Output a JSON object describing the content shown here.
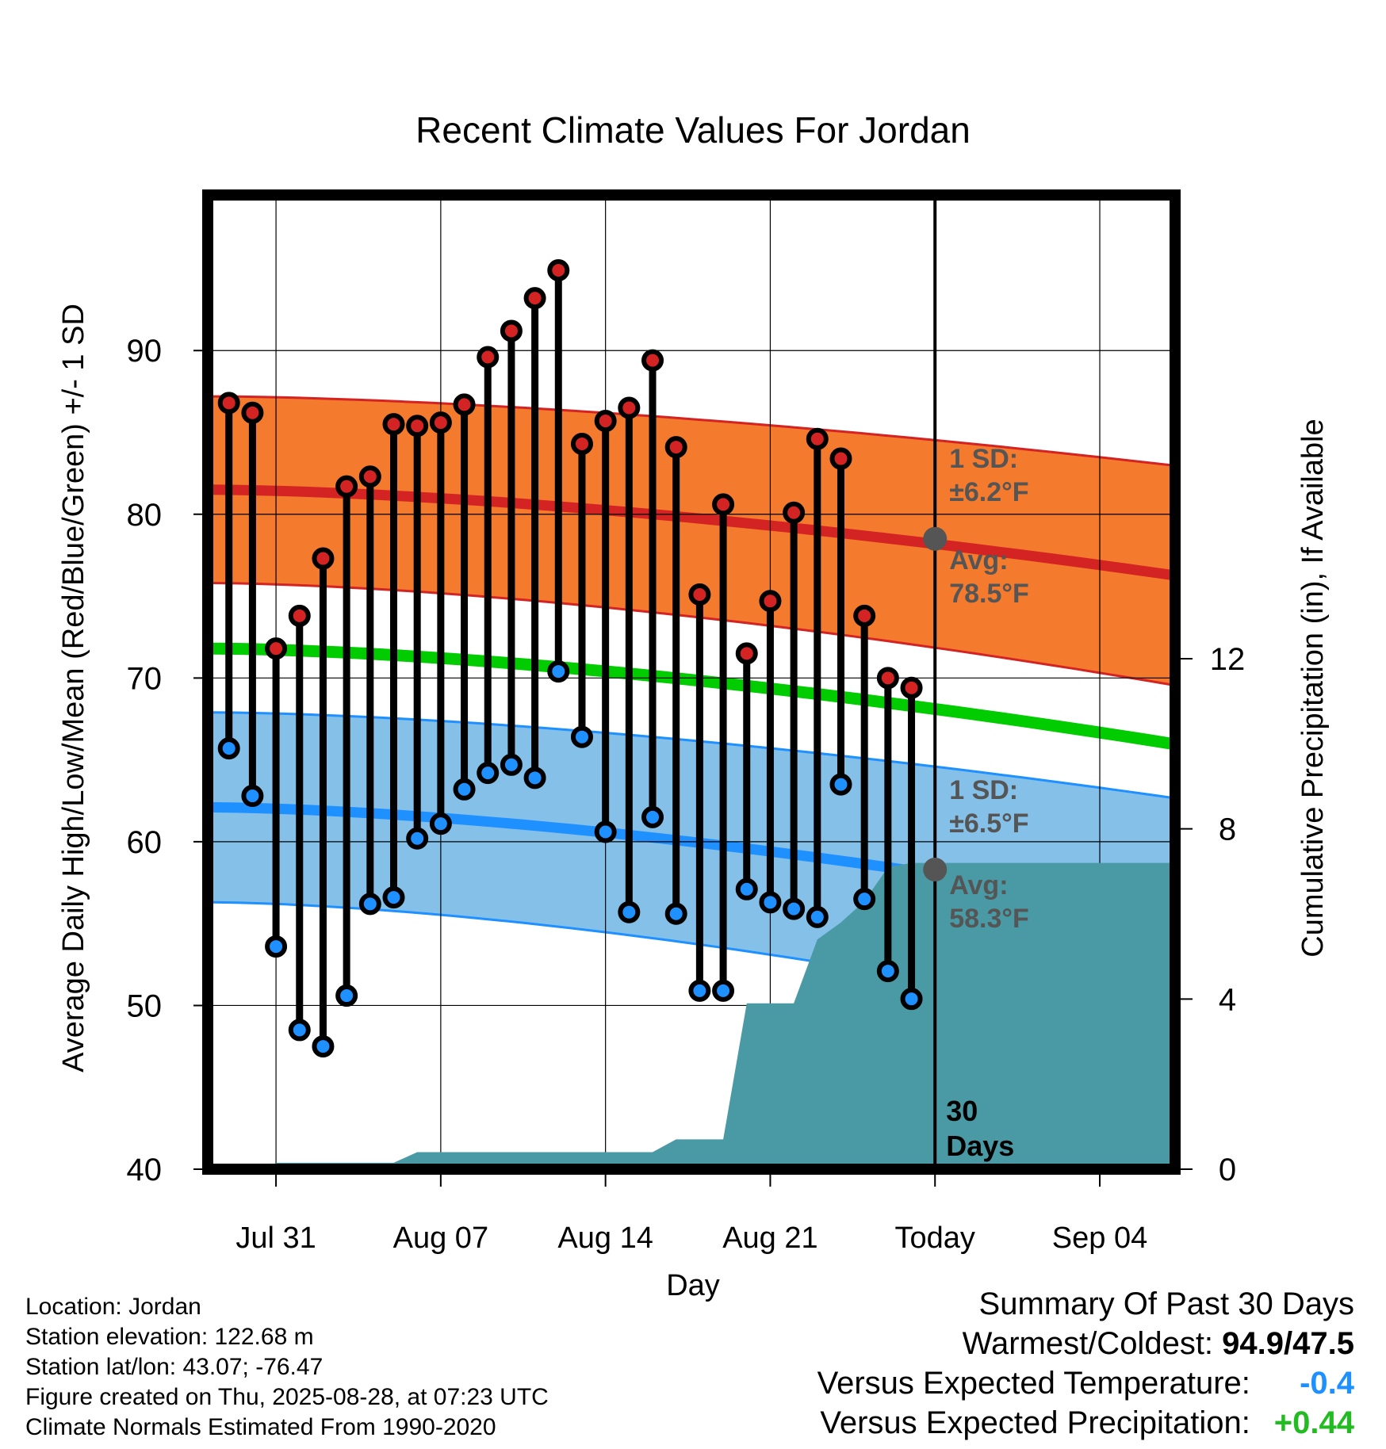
{
  "chart_data": {
    "type": "line",
    "title": "Recent Climate Values For Jordan",
    "xlabel": "Day",
    "ylabel": "Average Daily High/Low/Mean (Red/Blue/Green) +/- 1 SD",
    "y2label": "Cumulative Precipitation (in), If Available",
    "ylim": [
      40,
      99.5
    ],
    "y2lim": [
      0,
      22.9
    ],
    "yticks": [
      "40",
      "50",
      "60",
      "70",
      "80",
      "90"
    ],
    "y2ticks": [
      "0",
      "4",
      "8",
      "12"
    ],
    "xlim": [
      -2.9,
      38.2
    ],
    "xticks": [
      {
        "x": 0,
        "label": "Jul 31"
      },
      {
        "x": 7,
        "label": "Aug 07"
      },
      {
        "x": 14,
        "label": "Aug 14"
      },
      {
        "x": 21,
        "label": "Aug 21"
      },
      {
        "x": 28,
        "label": "Today"
      },
      {
        "x": 35,
        "label": "Sep 04"
      }
    ],
    "today_x": 28,
    "grid": true,
    "daily": {
      "x": [
        -2,
        -1,
        0,
        1,
        2,
        3,
        4,
        5,
        6,
        7,
        8,
        9,
        10,
        11,
        12,
        13,
        14,
        15,
        16,
        17,
        18,
        19,
        20,
        21,
        22,
        23,
        24,
        25,
        26,
        27
      ],
      "high": [
        86.8,
        86.2,
        71.8,
        73.8,
        77.3,
        81.7,
        82.3,
        85.5,
        85.4,
        85.6,
        86.7,
        89.6,
        91.2,
        93.2,
        94.9,
        84.3,
        85.7,
        86.5,
        89.4,
        84.1,
        75.1,
        80.6,
        71.5,
        74.7,
        80.1,
        84.6,
        83.4,
        73.8,
        70.0,
        69.4
      ],
      "low": [
        65.7,
        62.8,
        53.6,
        48.5,
        47.5,
        50.6,
        56.2,
        56.6,
        60.2,
        61.1,
        63.2,
        64.2,
        64.7,
        63.9,
        70.4,
        66.4,
        60.6,
        55.7,
        61.5,
        55.6,
        50.9,
        50.9,
        57.1,
        56.3,
        55.9,
        55.4,
        63.5,
        56.5,
        52.1,
        50.4
      ]
    },
    "normals": {
      "x": [
        -2.7,
        38
      ],
      "high_avg": [
        81.5,
        76.3
      ],
      "high_sd": 6.2,
      "low_avg": [
        62.1,
        55.7
      ],
      "low_sd": 6.5,
      "mean_avg": [
        71.8,
        66.0
      ]
    },
    "precip": {
      "x": [
        0,
        5,
        6,
        16,
        17,
        19,
        20,
        22,
        23,
        24,
        25,
        26,
        27,
        38
      ],
      "y": [
        0.15,
        0.15,
        0.4,
        0.4,
        0.7,
        0.7,
        3.9,
        3.9,
        5.4,
        5.8,
        6.3,
        7.1,
        7.2,
        7.2
      ]
    },
    "annotations": {
      "high_sd_label": "1 SD:",
      "high_sd_value": "±6.2°F",
      "high_avg_label": "Avg:",
      "high_avg_value": "78.5°F",
      "low_sd_label": "1 SD:",
      "low_sd_value": "±6.5°F",
      "low_avg_label": "Avg:",
      "low_avg_value": "58.3°F",
      "days_line1": "30",
      "days_line2": "Days"
    },
    "today_markers": {
      "high": 78.5,
      "low": 58.3
    }
  },
  "colors": {
    "high": "#d42323",
    "high_band": "#f47a2d",
    "low": "#1e90ff",
    "low_band": "#85c0e8",
    "mean": "#00cc00",
    "precip": "#4a9aa5",
    "annotation": "#555555"
  },
  "info": {
    "location": "Location: Jordan",
    "elevation": "Station elevation: 122.68 m",
    "latlon": "Station lat/lon: 43.07; -76.47",
    "created": "Figure created on Thu, 2025-08-28, at 07:23 UTC",
    "normals": "Climate Normals Estimated From 1990-2020"
  },
  "summary": {
    "title": "Summary Of Past 30 Days",
    "warm_cold_label": "Warmest/Coldest:",
    "warm_cold_value": "94.9/47.5",
    "temp_label": "Versus Expected Temperature:",
    "temp_value": "-0.4",
    "temp_color": "#1e90ff",
    "precip_label": "Versus Expected Precipitation:",
    "precip_value": "+0.44",
    "precip_color": "#22bb22"
  }
}
